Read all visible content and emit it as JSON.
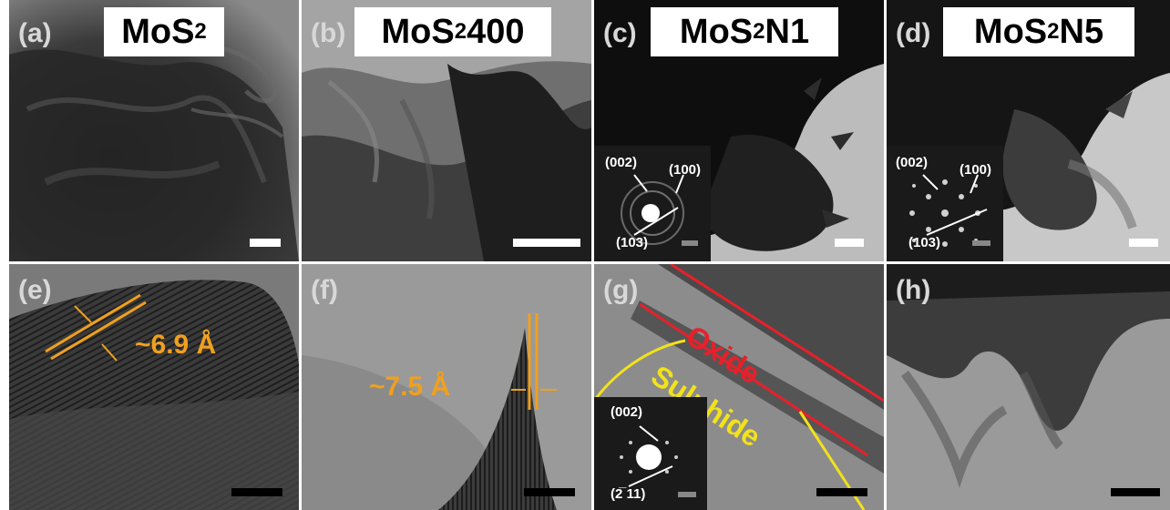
{
  "panels": [
    {
      "id": "a",
      "label": "(a)",
      "title_main": "MoS",
      "title_sub": "2",
      "title_suffix": ""
    },
    {
      "id": "b",
      "label": "(b)",
      "title_main": "MoS",
      "title_sub": "2",
      "title_suffix": " 400"
    },
    {
      "id": "c",
      "label": "(c)",
      "title_main": "MoS",
      "title_sub": "2",
      "title_suffix": " N1"
    },
    {
      "id": "d",
      "label": "(d)",
      "title_main": "MoS",
      "title_sub": "2",
      "title_suffix": " N5"
    },
    {
      "id": "e",
      "label": "(e)"
    },
    {
      "id": "f",
      "label": "(f)"
    },
    {
      "id": "g",
      "label": "(g)"
    },
    {
      "id": "h",
      "label": "(h)"
    }
  ],
  "insets": {
    "c": {
      "p1": "(002)",
      "p2": "(100)",
      "p3": "(103)"
    },
    "d": {
      "p1": "(002)",
      "p2": "(100)",
      "p3": "(103)"
    },
    "g": {
      "p1": "(002)",
      "p2": "(2̅ 11)"
    }
  },
  "annotations": {
    "e_spacing": "~6.9 Å",
    "f_spacing": "~7.5 Å",
    "g_oxide": "Oxide",
    "g_sulphide": "Sulphide"
  },
  "colors": {
    "spacing": "#f0a01e",
    "oxide": "#e8202a",
    "sulphide": "#f2e21a",
    "scalebar_top": "#ffffff",
    "scalebar_bottom": "#000000"
  }
}
